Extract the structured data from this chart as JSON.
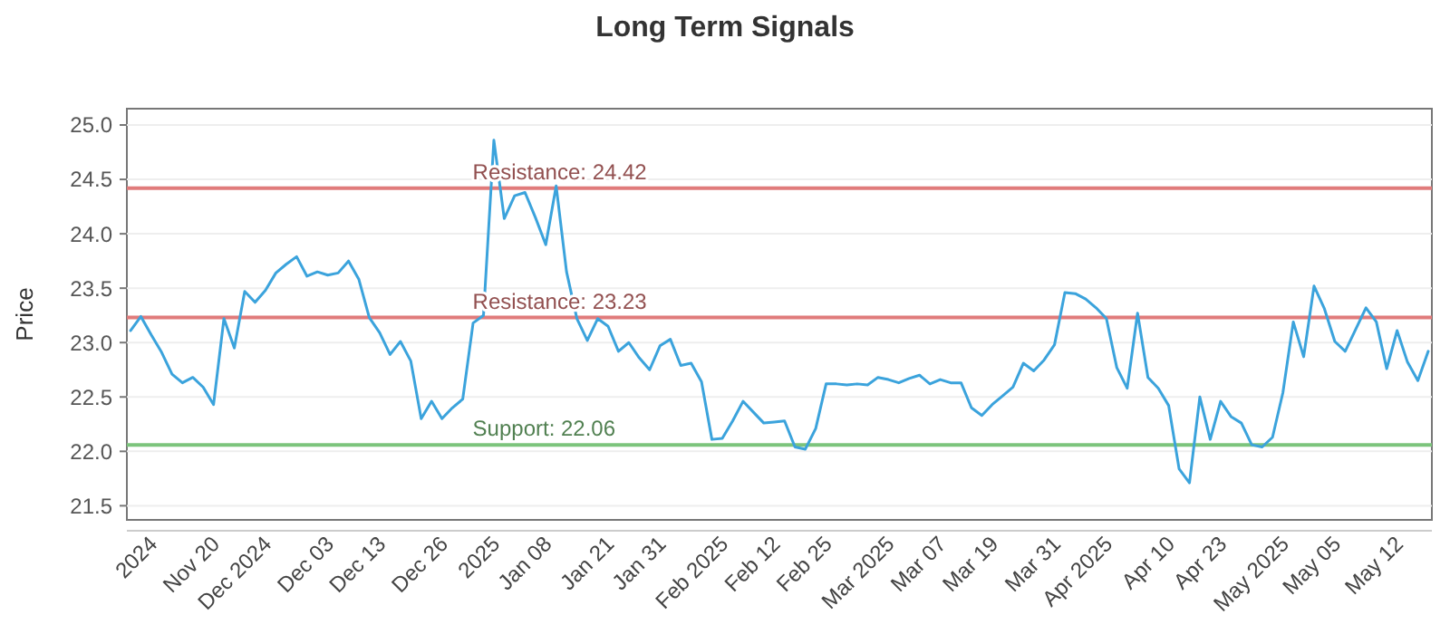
{
  "chart_data": {
    "type": "line",
    "title": "Long Term Signals",
    "ylabel": "Price",
    "categories": [
      null,
      null,
      "2024",
      null,
      null,
      null,
      null,
      null,
      "Nov 20",
      null,
      null,
      null,
      null,
      "Dec 2024",
      null,
      null,
      null,
      null,
      null,
      "Dec 03",
      null,
      null,
      null,
      null,
      "Dec 13",
      null,
      null,
      null,
      null,
      null,
      "Dec 26",
      null,
      null,
      null,
      null,
      "2025",
      null,
      null,
      null,
      null,
      "Jan 08",
      null,
      null,
      null,
      null,
      null,
      "Jan 21",
      null,
      null,
      null,
      null,
      "Jan 31",
      null,
      null,
      null,
      null,
      null,
      "Feb 2025",
      null,
      null,
      null,
      null,
      "Feb 12",
      null,
      null,
      null,
      null,
      "Feb 25",
      null,
      null,
      null,
      null,
      null,
      "Mar 2025",
      null,
      null,
      null,
      null,
      "Mar 07",
      null,
      null,
      null,
      null,
      "Mar 19",
      null,
      null,
      null,
      null,
      null,
      "Mar 31",
      null,
      null,
      null,
      null,
      "Apr 2025",
      null,
      null,
      null,
      null,
      null,
      "Apr 10",
      null,
      null,
      null,
      null,
      "Apr 23",
      null,
      null,
      null,
      null,
      null,
      "May 2025",
      null,
      null,
      null,
      null,
      "May 05",
      null,
      null,
      null,
      null,
      null,
      "May 12",
      null,
      null,
      null
    ],
    "series": [
      {
        "color": "#3ba3dc",
        "values": [
          23.11,
          23.24,
          23.07,
          22.91,
          22.71,
          22.63,
          22.68,
          22.59,
          22.43,
          23.22,
          22.95,
          23.47,
          23.37,
          23.48,
          23.64,
          23.72,
          23.79,
          23.61,
          23.65,
          23.62,
          23.64,
          23.75,
          23.58,
          23.23,
          23.09,
          22.89,
          23.01,
          22.83,
          22.3,
          22.46,
          22.3,
          22.4,
          22.48,
          23.18,
          23.25,
          24.86,
          24.14,
          24.35,
          24.38,
          24.15,
          23.9,
          24.44,
          23.65,
          23.22,
          23.02,
          23.22,
          23.15,
          22.92,
          23.0,
          22.86,
          22.75,
          22.97,
          23.03,
          22.79,
          22.81,
          22.64,
          22.11,
          22.12,
          22.28,
          22.46,
          22.36,
          22.26,
          22.27,
          22.28,
          22.04,
          22.02,
          22.21,
          22.62,
          22.62,
          22.61,
          22.62,
          22.61,
          22.68,
          22.66,
          22.63,
          22.67,
          22.7,
          22.62,
          22.66,
          22.63,
          22.63,
          22.4,
          22.33,
          22.43,
          22.51,
          22.59,
          22.81,
          22.74,
          22.84,
          22.98,
          23.46,
          23.45,
          23.4,
          23.32,
          23.22,
          22.77,
          22.58,
          23.27,
          22.68,
          22.58,
          22.42,
          21.84,
          21.71,
          22.5,
          22.11,
          22.46,
          22.32,
          22.26,
          22.06,
          22.04,
          22.13,
          22.54,
          23.19,
          22.87,
          23.52,
          23.31,
          23.01,
          22.92,
          23.12,
          23.32,
          23.19,
          22.76,
          23.11,
          22.82,
          22.65,
          22.92
        ]
      }
    ],
    "ylim": [
      21.37,
      25.15
    ],
    "yticks": [
      21.5,
      {
        "value": 22,
        "label": "22.0"
      },
      22.5,
      {
        "value": 23,
        "label": "23.0"
      },
      23.5,
      {
        "value": 24,
        "label": "24.0"
      },
      24.5,
      {
        "value": 25,
        "label": "25.0"
      }
    ],
    "grid": "y",
    "marker": "none",
    "line_style": "solid",
    "ref_lines": [
      {
        "axis": "y",
        "value": 24.42,
        "label": "Resistance: 24.42",
        "color": "#e07b7b"
      },
      {
        "axis": "y",
        "value": 23.23,
        "label": "Resistance: 23.23",
        "color": "#e07b7b"
      },
      {
        "axis": "y",
        "value": 22.06,
        "label": "Support: 22.06",
        "color": "#7cc47c"
      }
    ]
  }
}
